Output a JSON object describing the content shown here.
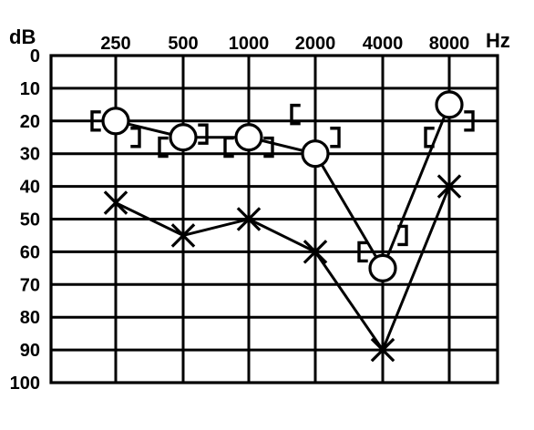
{
  "chart_data": {
    "type": "line",
    "title": "",
    "xlabel": "Hz",
    "ylabel": "dB",
    "x": [
      250,
      500,
      1000,
      2000,
      4000,
      8000
    ],
    "x_tick_labels": [
      "250",
      "500",
      "1000",
      "2000",
      "4000",
      "8000"
    ],
    "y_tick_labels": [
      "0",
      "10",
      "20",
      "30",
      "40",
      "50",
      "60",
      "70",
      "80",
      "90",
      "100"
    ],
    "ylim": [
      0,
      100
    ],
    "y_direction": "downward",
    "grid": true,
    "legend": "none",
    "series": [
      {
        "marker": "open-circle",
        "values": [
          20,
          25,
          25,
          30,
          65,
          15
        ]
      },
      {
        "marker": "x",
        "values": [
          45,
          55,
          50,
          60,
          90,
          40
        ]
      },
      {
        "marker": "bracket-pairs",
        "points": [
          {
            "x": 250,
            "left": 20,
            "right": 25
          },
          {
            "x": 500,
            "left": 28,
            "right": 24
          },
          {
            "x": 1000,
            "left": 28,
            "right": 28
          },
          {
            "x": 2000,
            "left": 18,
            "right": 25
          },
          {
            "x": 4000,
            "left": 60,
            "right": 55
          },
          {
            "x": 8000,
            "left": 25,
            "right": 20
          }
        ]
      }
    ]
  }
}
